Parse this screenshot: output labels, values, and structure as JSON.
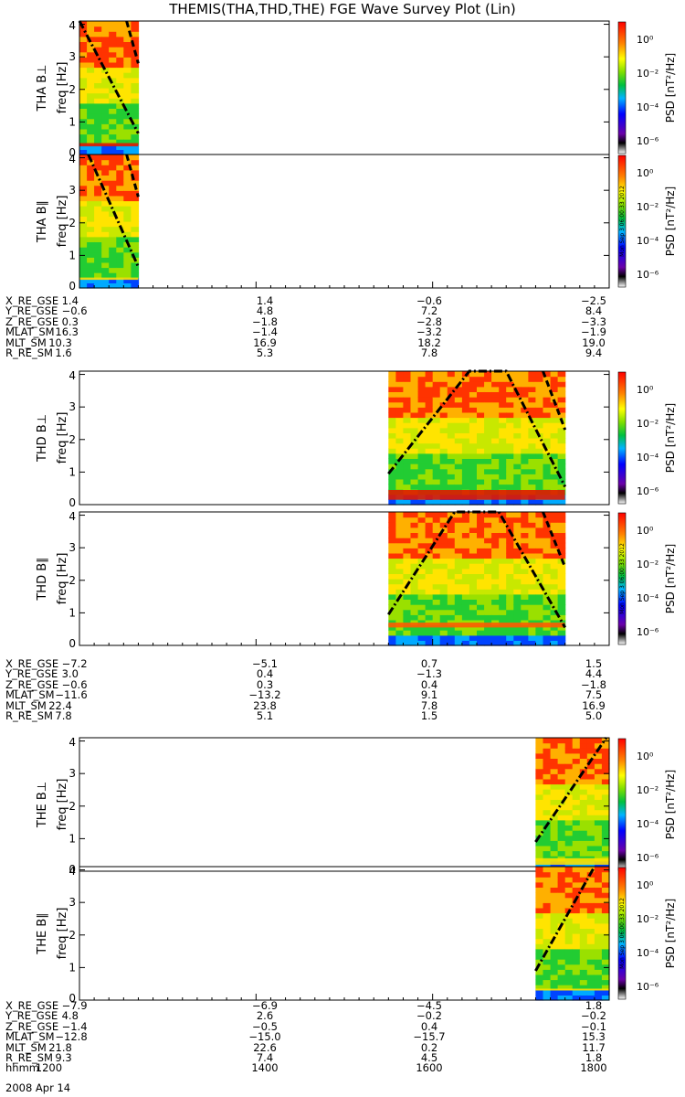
{
  "title": "THEMIS(THA,THD,THE) FGE Wave Survey Plot (Lin)",
  "date_label": "2008 Apr 14",
  "colorbar": {
    "label": "PSD [nT²/Hz]",
    "ticks": [
      "10⁰",
      "10⁻²",
      "10⁻⁴",
      "10⁻⁶"
    ],
    "stamp": "Mon Sep 3 06:00:33 2012"
  },
  "chart_data": [
    {
      "type": "heatmap",
      "name": "THA B⊥",
      "ylabel": "THA B⊥\nfreq [Hz]",
      "yticks": [
        "0",
        "1",
        "2",
        "3",
        "4"
      ],
      "ylim": [
        0,
        4.1
      ],
      "data_range_hhmm": [
        "1200",
        "1240"
      ],
      "band_hz": [
        0.25,
        0.35
      ],
      "band_strength": "strong",
      "dotdash_curve_hz": [
        [
          1200,
          4.1
        ],
        [
          1240,
          0.65
        ]
      ],
      "dash_curve_hz": [
        [
          1232,
          4.1
        ],
        [
          1240,
          2.8
        ]
      ],
      "colors": {
        "low": "#0044ff",
        "mid": "#22cc33",
        "high": "#ff3300"
      }
    },
    {
      "type": "heatmap",
      "name": "THA B∥",
      "ylabel": "THA B∥\nfreq [Hz]",
      "yticks": [
        "0",
        "1",
        "2",
        "3",
        "4"
      ],
      "ylim": [
        0,
        4.1
      ],
      "data_range_hhmm": [
        "1200",
        "1240"
      ],
      "band_hz": [
        0.25,
        0.32
      ],
      "band_strength": "weak",
      "dotdash_curve_hz": [
        [
          1206,
          4.1
        ],
        [
          1240,
          0.65
        ]
      ],
      "dash_curve_hz": [
        [
          1232,
          4.1
        ],
        [
          1240,
          2.8
        ]
      ],
      "colors": {
        "low": "#0044ff",
        "mid": "#22cc33",
        "high": "#ff3300"
      }
    },
    {
      "type": "heatmap",
      "name": "THD B⊥",
      "ylabel": "THD B⊥\nfreq [Hz]",
      "yticks": [
        "0",
        "1",
        "2",
        "3",
        "4"
      ],
      "ylim": [
        0,
        4.1
      ],
      "data_range_hhmm": [
        "1530",
        "1730"
      ],
      "band_hz": [
        0.15,
        0.45
      ],
      "band_strength": "strong",
      "dotdash_curve_hz": [
        [
          1530,
          0.95
        ],
        [
          1625,
          4.1
        ],
        [
          1650,
          4.1
        ],
        [
          1730,
          0.55
        ]
      ],
      "dash_curve_hz": [
        [
          1715,
          4.1
        ],
        [
          1730,
          2.3
        ]
      ],
      "colors": {
        "low": "#0044ff",
        "mid": "#22cc33",
        "high": "#ff3300"
      }
    },
    {
      "type": "heatmap",
      "name": "THD B∥",
      "ylabel": "THD B∥\nfreq [Hz]",
      "yticks": [
        "0",
        "1",
        "2",
        "3",
        "4"
      ],
      "ylim": [
        0,
        4.1
      ],
      "data_range_hhmm": [
        "1530",
        "1730"
      ],
      "band_hz": [
        0.55,
        0.7
      ],
      "band_strength": "medium",
      "dotdash_curve_hz": [
        [
          1530,
          0.95
        ],
        [
          1615,
          4.1
        ],
        [
          1645,
          4.1
        ],
        [
          1730,
          0.55
        ]
      ],
      "dash_curve_hz": [
        [
          1715,
          4.1
        ],
        [
          1730,
          2.4
        ]
      ],
      "colors": {
        "low": "#0044ff",
        "mid": "#22cc33",
        "high": "#ff3300"
      }
    },
    {
      "type": "heatmap",
      "name": "THE B⊥",
      "ylabel": "THE B⊥\nfreq [Hz]",
      "yticks": [
        "0",
        "1",
        "2",
        "3",
        "4"
      ],
      "ylim": [
        0,
        4.1
      ],
      "data_range_hhmm": [
        "1710",
        "1800"
      ],
      "band_hz": [
        0.2,
        0.4
      ],
      "band_strength": "weak",
      "dotdash_curve_hz": [
        [
          1710,
          0.9
        ],
        [
          1758,
          4.1
        ]
      ],
      "dash_curve_hz": [],
      "colors": {
        "low": "#0044ff",
        "mid": "#22cc33",
        "high": "#ff3300"
      }
    },
    {
      "type": "heatmap",
      "name": "THE B∥",
      "ylabel": "THE B∥\nfreq [Hz]",
      "yticks": [
        "0",
        "1",
        "2",
        "3",
        "4"
      ],
      "ylim": [
        0,
        4.1
      ],
      "data_range_hhmm": [
        "1710",
        "1800"
      ],
      "band_hz": [
        0.3,
        0.35
      ],
      "band_strength": "weak",
      "dotdash_curve_hz": [
        [
          1710,
          0.9
        ],
        [
          1750,
          4.1
        ]
      ],
      "dash_curve_hz": [],
      "colors": {
        "low": "#0044ff",
        "mid": "#22cc33",
        "high": "#ff3300"
      }
    }
  ],
  "ephemeris": [
    {
      "rows": [
        {
          "name": "X_RE_GSE",
          "values": [
            "1.4",
            "1.4",
            "−0.6",
            "−2.5"
          ]
        },
        {
          "name": "Y_RE_GSE",
          "values": [
            "−0.6",
            "4.8",
            "7.2",
            "8.4"
          ]
        },
        {
          "name": "Z_RE_GSE",
          "values": [
            "0.3",
            "−1.8",
            "−2.8",
            "−3.3"
          ]
        },
        {
          "name": "MLAT_SM",
          "values": [
            "16.3",
            "−1.4",
            "−3.2",
            "−1.9"
          ]
        },
        {
          "name": "MLT_SM",
          "values": [
            "10.3",
            "16.9",
            "18.2",
            "19.0"
          ]
        },
        {
          "name": "R_RE_SM",
          "values": [
            "1.6",
            "5.3",
            "7.8",
            "9.4"
          ]
        }
      ]
    },
    {
      "rows": [
        {
          "name": "X_RE_GSE",
          "values": [
            "−7.2",
            "−5.1",
            "0.7",
            "1.5"
          ]
        },
        {
          "name": "Y_RE_GSE",
          "values": [
            "3.0",
            "0.4",
            "−1.3",
            "4.4"
          ]
        },
        {
          "name": "Z_RE_GSE",
          "values": [
            "−0.6",
            "0.3",
            "0.4",
            "−1.8"
          ]
        },
        {
          "name": "MLAT_SM",
          "values": [
            "−11.6",
            "−13.2",
            "9.1",
            "7.5"
          ]
        },
        {
          "name": "MLT_SM",
          "values": [
            "22.4",
            "23.8",
            "7.8",
            "16.9"
          ]
        },
        {
          "name": "R_RE_SM",
          "values": [
            "7.8",
            "5.1",
            "1.5",
            "5.0"
          ]
        }
      ]
    },
    {
      "rows": [
        {
          "name": "X_RE_GSE",
          "values": [
            "−7.9",
            "−6.9",
            "−4.5",
            "1.8"
          ]
        },
        {
          "name": "Y_RE_GSE",
          "values": [
            "4.8",
            "2.6",
            "−0.2",
            "−0.2"
          ]
        },
        {
          "name": "Z_RE_GSE",
          "values": [
            "−1.4",
            "−0.5",
            "0.4",
            "−0.1"
          ]
        },
        {
          "name": "MLAT_SM",
          "values": [
            "−12.8",
            "−15.0",
            "−15.7",
            "15.3"
          ]
        },
        {
          "name": "MLT_SM",
          "values": [
            "21.8",
            "22.6",
            "0.2",
            "11.7"
          ]
        },
        {
          "name": "R_RE_SM",
          "values": [
            "9.3",
            "7.4",
            "4.5",
            "1.8"
          ]
        },
        {
          "name": "hhmm",
          "values": [
            "1200",
            "1400",
            "1600",
            "1800"
          ]
        }
      ]
    }
  ]
}
